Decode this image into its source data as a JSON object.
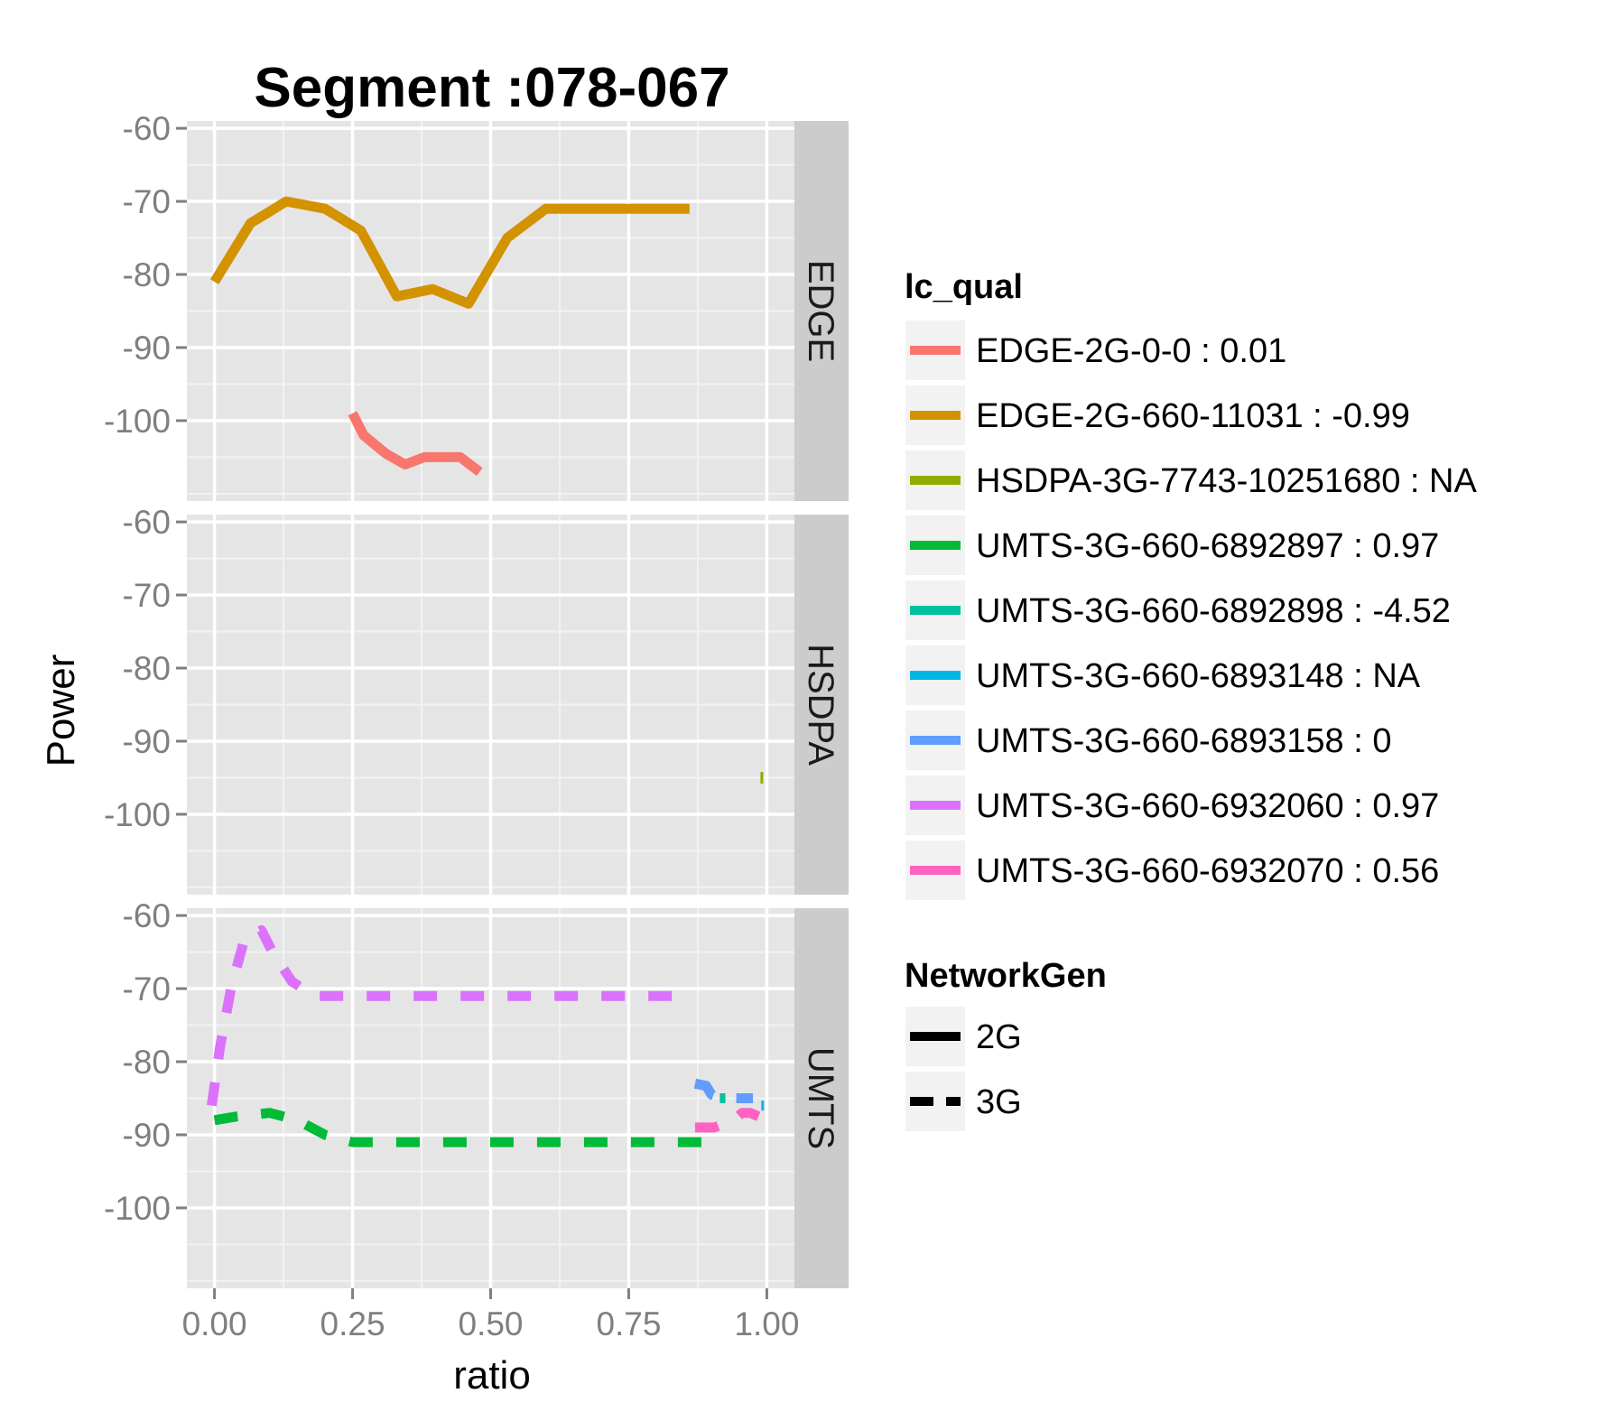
{
  "chart_data": {
    "type": "line",
    "title": "Segment :078-067",
    "xlabel": "ratio",
    "ylabel": "Power",
    "xlim": [
      -0.05,
      1.05
    ],
    "ylim": [
      -111,
      -59
    ],
    "x_ticks": [
      0.0,
      0.25,
      0.5,
      0.75,
      1.0
    ],
    "x_tick_labels": [
      "0.00",
      "0.25",
      "0.50",
      "0.75",
      "1.00"
    ],
    "y_ticks": [
      -60,
      -70,
      -80,
      -90,
      -100
    ],
    "y_tick_labels": [
      "-60",
      "-70",
      "-80",
      "-90",
      "-100"
    ],
    "grid": true,
    "panel_background": "#e5e5e5",
    "strip_background": "#cccccc",
    "facets": [
      "EDGE",
      "HSDPA",
      "UMTS"
    ],
    "legend_position": "right",
    "legend_color": {
      "title": "lc_qual",
      "entries": [
        {
          "label": "EDGE-2G-0-0 : 0.01",
          "color": "#f8766d"
        },
        {
          "label": "EDGE-2G-660-11031 : -0.99",
          "color": "#d39200"
        },
        {
          "label": "HSDPA-3G-7743-10251680 : NA",
          "color": "#93aa00"
        },
        {
          "label": "UMTS-3G-660-6892897 : 0.97",
          "color": "#00ba38"
        },
        {
          "label": "UMTS-3G-660-6892898 : -4.52",
          "color": "#00c19f"
        },
        {
          "label": "UMTS-3G-660-6893148 : NA",
          "color": "#00b9e3"
        },
        {
          "label": "UMTS-3G-660-6893158 : 0",
          "color": "#619cff"
        },
        {
          "label": "UMTS-3G-660-6932060 : 0.97",
          "color": "#db72fb"
        },
        {
          "label": "UMTS-3G-660-6932070 : 0.56",
          "color": "#ff61c3"
        }
      ]
    },
    "legend_linetype": {
      "title": "NetworkGen",
      "entries": [
        {
          "label": "2G",
          "linetype": "solid"
        },
        {
          "label": "3G",
          "linetype": "dashed"
        }
      ]
    },
    "series": [
      {
        "facet": "EDGE",
        "color_index": 0,
        "linetype": "solid",
        "x": [
          0.25,
          0.27,
          0.31,
          0.345,
          0.38,
          0.42,
          0.445,
          0.48
        ],
        "y": [
          -99,
          -102,
          -104.5,
          -106,
          -105,
          -105,
          -105,
          -107
        ]
      },
      {
        "facet": "EDGE",
        "color_index": 1,
        "linetype": "solid",
        "x": [
          0.0,
          0.065,
          0.13,
          0.2,
          0.265,
          0.33,
          0.395,
          0.46,
          0.53,
          0.6,
          0.67,
          0.74,
          0.8,
          0.86
        ],
        "y": [
          -81,
          -73,
          -70,
          -71,
          -74,
          -83,
          -82,
          -84,
          -75,
          -71,
          -71,
          -71,
          -71,
          -71
        ]
      },
      {
        "facet": "HSDPA",
        "color_index": 2,
        "linetype": "solid",
        "x": [
          0.991,
          0.991
        ],
        "y": [
          -94.2,
          -95.8
        ]
      },
      {
        "facet": "UMTS",
        "color_index": 3,
        "linetype": "dashed",
        "x": [
          0.0,
          0.04,
          0.1,
          0.15,
          0.2,
          0.25,
          0.35,
          0.45,
          0.55,
          0.65,
          0.75,
          0.82,
          0.885
        ],
        "y": [
          -88,
          -87.5,
          -87,
          -88,
          -90,
          -91,
          -91,
          -91,
          -91,
          -91,
          -91,
          -91,
          -91
        ]
      },
      {
        "facet": "UMTS",
        "color_index": 4,
        "linetype": "dashed",
        "x": [
          0.915,
          0.925
        ],
        "y": [
          -85,
          -85
        ]
      },
      {
        "facet": "UMTS",
        "color_index": 5,
        "linetype": "dashed",
        "x": [
          0.99,
          0.995
        ],
        "y": [
          -86,
          -86
        ]
      },
      {
        "facet": "UMTS",
        "color_index": 6,
        "linetype": "dashed",
        "x": [
          0.87,
          0.89,
          0.9,
          0.92,
          0.96,
          0.975
        ],
        "y": [
          -83,
          -83.3,
          -84.5,
          -85,
          -85,
          -85
        ]
      },
      {
        "facet": "UMTS",
        "color_index": 7,
        "linetype": "dashed",
        "x": [
          -0.005,
          0.01,
          0.03,
          0.055,
          0.085,
          0.105,
          0.14,
          0.18,
          0.25,
          0.35,
          0.45,
          0.55,
          0.65,
          0.75,
          0.83
        ],
        "y": [
          -86,
          -78,
          -70,
          -63,
          -62,
          -65,
          -69,
          -71,
          -71,
          -71,
          -71,
          -71,
          -71,
          -71,
          -71
        ]
      },
      {
        "facet": "UMTS",
        "color_index": 8,
        "linetype": "dashed",
        "x": [
          0.87,
          0.905,
          0.94,
          0.955,
          0.97,
          0.985
        ],
        "y": [
          -89,
          -89,
          -88,
          -87,
          -87,
          -87.5
        ]
      }
    ]
  }
}
